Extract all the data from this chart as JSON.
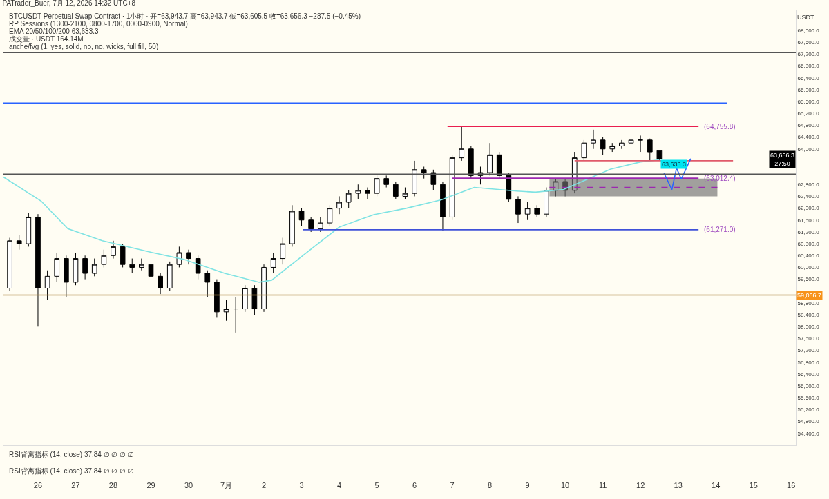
{
  "chart_data": {
    "type": "candlestick",
    "title": "PATrader_Buer, 7月 12, 2026 14:32 UTC+8",
    "ylabel": "USDT",
    "color": "#000000",
    "xlim": [
      "2026-06-25T02:00",
      "2026-07-16T03:00"
    ],
    "xticks": [
      {
        "value": "2026-06-26",
        "label": "26"
      },
      {
        "value": "2026-06-27",
        "label": "27"
      },
      {
        "value": "2026-06-28",
        "label": "28"
      },
      {
        "value": "2026-06-29",
        "label": "29"
      },
      {
        "value": "2026-06-30",
        "label": "30"
      },
      {
        "value": "2026-07-01",
        "label": "7月"
      },
      {
        "value": "2026-07-02",
        "label": "2"
      },
      {
        "value": "2026-07-03",
        "label": "3"
      },
      {
        "value": "2026-07-04",
        "label": "4"
      },
      {
        "value": "2026-07-05",
        "label": "5"
      },
      {
        "value": "2026-07-06",
        "label": "6"
      },
      {
        "value": "2026-07-07",
        "label": "7"
      },
      {
        "value": "2026-07-08",
        "label": "8"
      },
      {
        "value": "2026-07-09",
        "label": "9"
      },
      {
        "value": "2026-07-10",
        "label": "10"
      },
      {
        "value": "2026-07-11",
        "label": "11"
      },
      {
        "value": "2026-07-12",
        "label": "12"
      },
      {
        "value": "2026-07-13",
        "label": "13"
      },
      {
        "value": "2026-07-14",
        "label": "14"
      },
      {
        "value": "2026-07-15",
        "label": "15"
      },
      {
        "value": "2026-07-16",
        "label": "16"
      }
    ],
    "ylim": [
      54000,
      68700
    ],
    "yticks": [
      {
        "value": 54400,
        "label": "54,400.0"
      },
      {
        "value": 54800,
        "label": "54,800.0"
      },
      {
        "value": 55200,
        "label": "55,200.0"
      },
      {
        "value": 55600,
        "label": "55,600.0"
      },
      {
        "value": 56000,
        "label": "56,000.0"
      },
      {
        "value": 56400,
        "label": "56,400.0"
      },
      {
        "value": 56800,
        "label": "56,800.0"
      },
      {
        "value": 57200,
        "label": "57,200.0"
      },
      {
        "value": 57600,
        "label": "57,600.0"
      },
      {
        "value": 58000,
        "label": "58,000.0"
      },
      {
        "value": 58400,
        "label": "58,400.0"
      },
      {
        "value": 58800,
        "label": "58,800.0"
      },
      {
        "value": 59600,
        "label": "59,600.0"
      },
      {
        "value": 60000,
        "label": "60,000.0"
      },
      {
        "value": 60400,
        "label": "60,400.0"
      },
      {
        "value": 60800,
        "label": "60,800.0"
      },
      {
        "value": 61200,
        "label": "61,200.0"
      },
      {
        "value": 61600,
        "label": "61,600.0"
      },
      {
        "value": 62000,
        "label": "62,000.0"
      },
      {
        "value": 62400,
        "label": "62,400.0"
      },
      {
        "value": 62800,
        "label": "62,800.0"
      },
      {
        "value": 64000,
        "label": "64,000.0"
      },
      {
        "value": 64400,
        "label": "64,400.0"
      },
      {
        "value": 64800,
        "label": "64,800.0"
      },
      {
        "value": 65200,
        "label": "65,200.0"
      },
      {
        "value": 65600,
        "label": "65,600.0"
      },
      {
        "value": 66000,
        "label": "66,000.0"
      },
      {
        "value": 66400,
        "label": "66,400.0"
      },
      {
        "value": 66800,
        "label": "66,800.0"
      },
      {
        "value": 67200,
        "label": "67,200.0"
      },
      {
        "value": 67600,
        "label": "67,600.0"
      },
      {
        "value": 68000,
        "label": "68,000.0"
      }
    ],
    "x": [
      "2026-06-25T06:00",
      "2026-06-25T12:00",
      "2026-06-25T18:00",
      "2026-06-26T00:00",
      "2026-06-26T06:00",
      "2026-06-26T12:00",
      "2026-06-26T18:00",
      "2026-06-27T00:00",
      "2026-06-27T06:00",
      "2026-06-27T12:00",
      "2026-06-27T18:00",
      "2026-06-28T00:00",
      "2026-06-28T06:00",
      "2026-06-28T12:00",
      "2026-06-28T18:00",
      "2026-06-29T00:00",
      "2026-06-29T06:00",
      "2026-06-29T12:00",
      "2026-06-29T18:00",
      "2026-06-30T00:00",
      "2026-06-30T06:00",
      "2026-06-30T12:00",
      "2026-06-30T18:00",
      "2026-07-01T00:00",
      "2026-07-01T06:00",
      "2026-07-01T12:00",
      "2026-07-01T18:00",
      "2026-07-02T00:00",
      "2026-07-02T06:00",
      "2026-07-02T12:00",
      "2026-07-02T18:00",
      "2026-07-03T00:00",
      "2026-07-03T06:00",
      "2026-07-03T12:00",
      "2026-07-03T18:00",
      "2026-07-04T00:00",
      "2026-07-04T06:00",
      "2026-07-04T12:00",
      "2026-07-04T18:00",
      "2026-07-05T00:00",
      "2026-07-05T06:00",
      "2026-07-05T12:00",
      "2026-07-05T18:00",
      "2026-07-06T00:00",
      "2026-07-06T06:00",
      "2026-07-06T12:00",
      "2026-07-06T18:00",
      "2026-07-07T00:00",
      "2026-07-07T06:00",
      "2026-07-07T12:00",
      "2026-07-07T18:00",
      "2026-07-08T00:00",
      "2026-07-08T06:00",
      "2026-07-08T12:00",
      "2026-07-08T18:00",
      "2026-07-09T00:00",
      "2026-07-09T06:00",
      "2026-07-09T12:00",
      "2026-07-09T18:00",
      "2026-07-10T00:00",
      "2026-07-10T06:00",
      "2026-07-10T12:00",
      "2026-07-10T18:00",
      "2026-07-11T00:00",
      "2026-07-11T06:00",
      "2026-07-11T12:00",
      "2026-07-11T18:00",
      "2026-07-12T00:00",
      "2026-07-12T06:00",
      "2026-07-12T12:00"
    ],
    "ohlc": [
      [
        59300,
        61000,
        59200,
        60900
      ],
      [
        60900,
        61100,
        60600,
        60800
      ],
      [
        60800,
        61850,
        60700,
        61700
      ],
      [
        61700,
        61800,
        58000,
        59300
      ],
      [
        59300,
        59900,
        58900,
        59700
      ],
      [
        59700,
        60500,
        59500,
        60300
      ],
      [
        60300,
        60400,
        59000,
        59500
      ],
      [
        59500,
        60500,
        59400,
        60300
      ],
      [
        60300,
        60400,
        59600,
        59800
      ],
      [
        59800,
        60300,
        59700,
        60100
      ],
      [
        60100,
        60600,
        60000,
        60400
      ],
      [
        60400,
        60900,
        60300,
        60700
      ],
      [
        60700,
        60800,
        60000,
        60100
      ],
      [
        60100,
        60300,
        59800,
        60000
      ],
      [
        60000,
        60300,
        59900,
        60100
      ],
      [
        60100,
        60200,
        59200,
        59700
      ],
      [
        59700,
        59800,
        59100,
        59300
      ],
      [
        59300,
        60200,
        59200,
        60100
      ],
      [
        60100,
        60700,
        60000,
        60500
      ],
      [
        60500,
        60600,
        60100,
        60300
      ],
      [
        60300,
        60400,
        59600,
        59800
      ],
      [
        59800,
        59900,
        59000,
        59500
      ],
      [
        59500,
        59600,
        58300,
        58500
      ],
      [
        58500,
        58900,
        58200,
        58600
      ],
      [
        58600,
        59000,
        57800,
        58600
      ],
      [
        58600,
        59400,
        58500,
        59300
      ],
      [
        59300,
        59400,
        58400,
        58600
      ],
      [
        58600,
        60100,
        58500,
        60000
      ],
      [
        60000,
        60500,
        59800,
        60300
      ],
      [
        60300,
        61000,
        60100,
        60800
      ],
      [
        60800,
        62100,
        60700,
        61900
      ],
      [
        61900,
        62000,
        61400,
        61600
      ],
      [
        61600,
        61700,
        61200,
        61300
      ],
      [
        61300,
        61700,
        61200,
        61500
      ],
      [
        61500,
        62100,
        61400,
        62000
      ],
      [
        62000,
        62400,
        61800,
        62200
      ],
      [
        62200,
        62600,
        62000,
        62500
      ],
      [
        62500,
        62800,
        62300,
        62600
      ],
      [
        62600,
        62700,
        62300,
        62500
      ],
      [
        62500,
        63100,
        62400,
        63000
      ],
      [
        63000,
        63100,
        62700,
        62800
      ],
      [
        62800,
        62900,
        62300,
        62400
      ],
      [
        62400,
        62700,
        62300,
        62500
      ],
      [
        62500,
        63600,
        62400,
        63300
      ],
      [
        63300,
        63400,
        63000,
        63200
      ],
      [
        63200,
        63300,
        62600,
        62800
      ],
      [
        62800,
        62900,
        61250,
        61700
      ],
      [
        61700,
        63800,
        61600,
        63700
      ],
      [
        63700,
        64750,
        63600,
        64000
      ],
      [
        64000,
        64100,
        63000,
        63100
      ],
      [
        63100,
        63400,
        62800,
        63200
      ],
      [
        63200,
        64200,
        63100,
        63800
      ],
      [
        63800,
        63900,
        63000,
        63100
      ],
      [
        63100,
        63200,
        62200,
        62300
      ],
      [
        62300,
        62400,
        61500,
        61800
      ],
      [
        61800,
        62200,
        61600,
        62000
      ],
      [
        62000,
        62100,
        61700,
        61800
      ],
      [
        61800,
        62700,
        61700,
        62600
      ],
      [
        62600,
        63000,
        62400,
        62900
      ],
      [
        62900,
        63000,
        62400,
        62600
      ],
      [
        62600,
        63900,
        62500,
        63700
      ],
      [
        63700,
        64300,
        63600,
        64200
      ],
      [
        64200,
        64650,
        64000,
        64300
      ],
      [
        64300,
        64400,
        63800,
        64000
      ],
      [
        64000,
        64200,
        63900,
        64100
      ],
      [
        64100,
        64300,
        64000,
        64200
      ],
      [
        64200,
        64450,
        64100,
        64300
      ],
      [
        64300,
        64450,
        63900,
        64300
      ],
      [
        64300,
        64350,
        63600,
        63900
      ],
      [
        63943.7,
        63943.7,
        63605.5,
        63656.3
      ]
    ],
    "value_labels": [
      null,
      null,
      null,
      null,
      null,
      null,
      null,
      null,
      null,
      null,
      null,
      null,
      null,
      null,
      null,
      null,
      null,
      null,
      null,
      null,
      null,
      null,
      null,
      null,
      null,
      null,
      null,
      null,
      null,
      null,
      null,
      null,
      null,
      null,
      null,
      null,
      null,
      null,
      null,
      null,
      null,
      null,
      null,
      null,
      null,
      null,
      null,
      null,
      null,
      null,
      null,
      null,
      null,
      null,
      null,
      null,
      null,
      null,
      null,
      null,
      null,
      null,
      null,
      null,
      null,
      null,
      null,
      null,
      null,
      "63,656.3"
    ],
    "series": [
      {
        "type": "line",
        "color": "#7fe3e3",
        "value_labels": [
          null,
          null,
          null,
          null,
          null,
          null,
          null,
          null,
          null,
          null,
          null,
          null,
          null,
          null,
          null,
          null,
          null,
          null,
          null,
          null,
          null,
          "63,633.3"
        ],
        "x": [
          "2026-06-25T02:00",
          "2026-06-26T02:00",
          "2026-06-26T19:00",
          "2026-06-27T17:00",
          "2026-06-29T01:00",
          "2026-06-29T21:00",
          "2026-06-30T23:00",
          "2026-07-01T21:00",
          "2026-07-02T05:00",
          "2026-07-03T02:00",
          "2026-07-04T00:00",
          "2026-07-04T22:00",
          "2026-07-05T19:00",
          "2026-07-06T17:00",
          "2026-07-07T14:00",
          "2026-07-08T17:00",
          "2026-07-09T05:00",
          "2026-07-09T23:00",
          "2026-07-10T12:00",
          "2026-07-11T05:00",
          "2026-07-12T00:00",
          "2026-07-12T12:00"
        ],
        "values": [
          63050,
          62240,
          61310,
          60900,
          60500,
          60270,
          59800,
          59500,
          59570,
          60450,
          61360,
          61780,
          62000,
          62280,
          62700,
          62580,
          62540,
          62630,
          62930,
          63320,
          63560,
          63633.3
        ]
      },
      {
        "type": "line",
        "color": "#2962ff",
        "x": [
          "2026-06-25T02:00",
          "2026-07-14T07:00"
        ],
        "values": [
          65550,
          65550
        ]
      },
      {
        "type": "line",
        "name": "(64,755.8)",
        "color": "#e91e4f",
        "x": [
          "2026-07-06T21:00",
          "2026-07-13T13:00"
        ],
        "values": [
          64755.8,
          64755.8
        ]
      },
      {
        "type": "line",
        "color": "#e05a6a",
        "x": [
          "2026-07-10T06:00",
          "2026-07-14T11:00"
        ],
        "values": [
          63600,
          63600
        ]
      },
      {
        "type": "line",
        "name": "(63,012.4)",
        "color": "#9c27b0",
        "x": [
          "2026-07-07T00:00",
          "2026-07-13T13:00"
        ],
        "values": [
          63012.4,
          63012.4
        ]
      },
      {
        "type": "line",
        "name": "(61,271.0)",
        "color": "#3f51d8",
        "x": [
          "2026-07-03T01:00",
          "2026-07-13T13:00"
        ],
        "values": [
          61271.0,
          61271.0
        ]
      },
      {
        "type": "line",
        "color": "#9c27b0",
        "line_style": "dashed",
        "x": [
          "2026-07-09T14:00",
          "2026-07-14T01:00"
        ],
        "values": [
          62700,
          62700
        ],
        "lower": [
          62400,
          62400
        ],
        "upper": [
          63000,
          63000
        ]
      },
      {
        "type": "line",
        "color": "#2962ff",
        "x": [
          "2026-07-12T15:00",
          "2026-07-12T20:00",
          "2026-07-12T23:00",
          "2026-07-13T02:00",
          "2026-07-13T08:00"
        ],
        "values": [
          63180,
          62630,
          63350,
          62980,
          63670
        ]
      }
    ],
    "ref_lines": [
      {
        "axis": "y",
        "value": 67250,
        "color": "#555555"
      },
      {
        "axis": "y",
        "value": 63150,
        "color": "#555555"
      },
      {
        "axis": "y",
        "value": 59066.7,
        "label": "59,066.7",
        "color": "#b08a4a"
      }
    ],
    "annotations": [
      "BTCUSDT Perpetual Swap Contract · 1小时 · 开=63,943.7 高=63,943.7 低=63,605.5 收=63,656.3 −287.5 (−0.45%)",
      "RP Sessions (1300-2100, 0800-1700, 0000-0900, Normal)",
      "EMA 20/50/100/200 63,633.3",
      "成交量 · USDT 164.14M",
      "anche/fvg (1, yes, solid, no, no, wicks, full fill, 50)",
      "RSI背离指标 (14, close) 37.84 ∅ ∅ ∅ ∅",
      "RSI背离指标 (14, close) 37.84 ∅ ∅ ∅ ∅",
      "27:50"
    ]
  }
}
